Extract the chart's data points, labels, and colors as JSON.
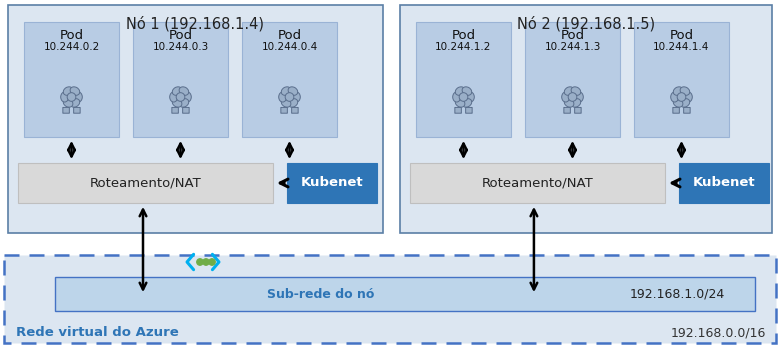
{
  "fig_width": 7.8,
  "fig_height": 3.49,
  "bg_color": "#ffffff",
  "node1_title": "Nó 1 (192.168.1.4)",
  "node2_title": "Nó 2 (192.168.1.5)",
  "node_bg": "#dce6f1",
  "node_border": "#5b7fa6",
  "pod_bg": "#b8cce4",
  "pod_border": "#9ab3d5",
  "nat_bg": "#d9d9d9",
  "nat_border": "#bfbfbf",
  "kubenet_bg": "#2e75b6",
  "kubenet_text": "#ffffff",
  "subnet_bg": "#bdd5ea",
  "subnet_border": "#4472c4",
  "vnet_bg": "#dce6f1",
  "vnet_border": "#4472c4",
  "node1_pods": [
    "Pod\n10.244.0.2",
    "Pod\n10.244.0.3",
    "Pod\n10.244.0.4"
  ],
  "node2_pods": [
    "Pod\n10.244.1.2",
    "Pod\n10.244.1.3",
    "Pod\n10.244.1.4"
  ],
  "nat_label": "Roteamento/NAT",
  "kubenet_label": "Kubenet",
  "subnet_label": "Sub-rede do nó",
  "subnet_addr": "192.168.1.0/24",
  "vnet_label": "Rede virtual do Azure",
  "vnet_addr": "192.168.0.0/16",
  "arrow_color": "#000000",
  "vnet_text_color": "#2e75b6",
  "subnet_text_color": "#2e75b6",
  "chevron_color": "#00b0f0",
  "dot_color": "#70ad47",
  "icon_dark": "#5a6e8c",
  "icon_light": "#9aafc8"
}
